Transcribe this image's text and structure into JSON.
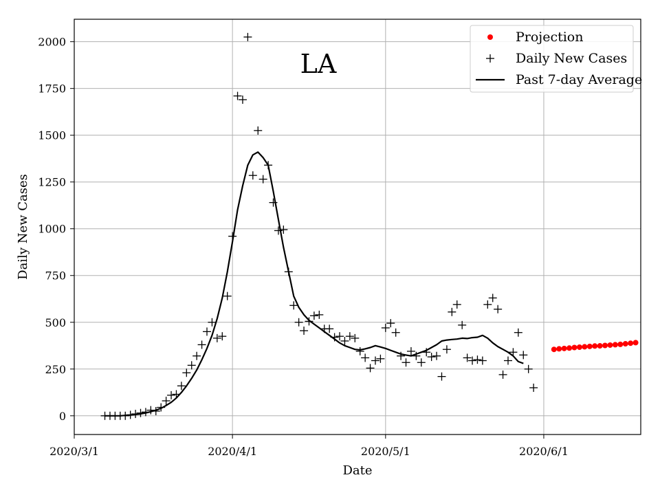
{
  "chart_data": {
    "type": "line",
    "title": "LA",
    "xlabel": "Date",
    "ylabel": "Daily New Cases",
    "x_axis": {
      "type": "date",
      "start": "2020-02-28",
      "ticks": [
        {
          "label": "2020/3/1",
          "day": 0
        },
        {
          "label": "2020/4/1",
          "day": 31
        },
        {
          "label": "2020/5/1",
          "day": 61
        },
        {
          "label": "2020/6/1",
          "day": 92
        }
      ],
      "xlim_days": [
        0,
        111
      ]
    },
    "y_axis": {
      "ylim": [
        -100,
        2120
      ],
      "ticks": [
        0,
        250,
        500,
        750,
        1000,
        1250,
        1500,
        1750,
        2000
      ]
    },
    "grid": true,
    "legend": {
      "position": "top-right",
      "entries": [
        {
          "name": "Projection",
          "marker": "dot",
          "color": "#ff0000"
        },
        {
          "name": "Daily New Cases",
          "marker": "plus",
          "color": "#000000"
        },
        {
          "name": "Past 7-day Average",
          "marker": "line",
          "color": "#000000"
        }
      ]
    },
    "series": [
      {
        "name": "Daily New Cases",
        "marker": "plus",
        "color": "#000000",
        "start_day": 6,
        "values": [
          0,
          0,
          0,
          0,
          0,
          5,
          10,
          15,
          20,
          30,
          25,
          45,
          80,
          110,
          115,
          160,
          230,
          270,
          320,
          380,
          450,
          500,
          415,
          425,
          640,
          960,
          1710,
          1690,
          2025,
          1285,
          1525,
          1265,
          1340,
          1140,
          990,
          995,
          770,
          590,
          500,
          455,
          505,
          535,
          540,
          465,
          465,
          420,
          425,
          400,
          425,
          415,
          345,
          310,
          255,
          295,
          305,
          470,
          495,
          445,
          320,
          285,
          345,
          320,
          285,
          340,
          315,
          320,
          210,
          355,
          555,
          595,
          485,
          310,
          295,
          300,
          295,
          595,
          630,
          570,
          220,
          295,
          340,
          445,
          325,
          250,
          150
        ]
      },
      {
        "name": "Past 7-day Average",
        "marker": "line",
        "color": "#000000",
        "start_day": 6,
        "values": [
          0,
          0,
          0,
          0,
          2,
          4,
          7,
          10,
          15,
          22,
          30,
          40,
          55,
          72,
          95,
          125,
          160,
          200,
          245,
          300,
          360,
          430,
          520,
          630,
          770,
          930,
          1100,
          1230,
          1340,
          1395,
          1410,
          1380,
          1340,
          1200,
          1050,
          900,
          770,
          640,
          580,
          540,
          510,
          490,
          470,
          450,
          430,
          410,
          390,
          375,
          365,
          355,
          352,
          358,
          365,
          375,
          368,
          360,
          350,
          340,
          330,
          325,
          320,
          330,
          340,
          350,
          365,
          380,
          400,
          405,
          408,
          410,
          415,
          413,
          418,
          420,
          430,
          415,
          390,
          370,
          355,
          340,
          320,
          290,
          280
        ]
      },
      {
        "name": "Projection",
        "marker": "dot",
        "color": "#ff0000",
        "start_day": 94,
        "values": [
          355,
          358,
          360,
          362,
          365,
          367,
          369,
          371,
          373,
          374,
          376,
          378,
          380,
          382,
          385,
          388,
          391
        ]
      }
    ]
  }
}
